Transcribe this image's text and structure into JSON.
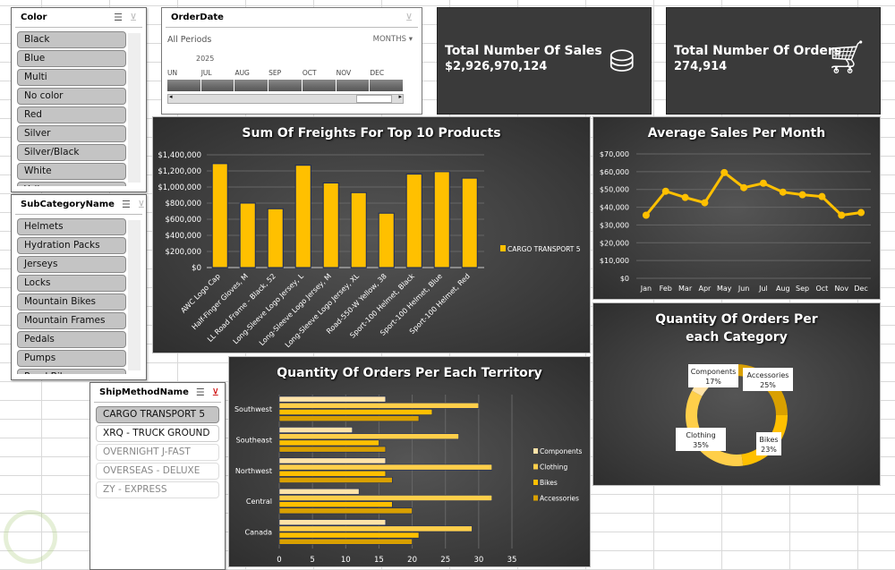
{
  "slicers": {
    "color": {
      "title": "Color",
      "items": [
        "Black",
        "Blue",
        "Multi",
        "No color",
        "Red",
        "Silver",
        "Silver/Black",
        "White",
        "Yellow"
      ]
    },
    "subcategory": {
      "title": "SubCategoryName",
      "items": [
        "Helmets",
        "Hydration Packs",
        "Jerseys",
        "Locks",
        "Mountain Bikes",
        "Mountain Frames",
        "Pedals",
        "Pumps",
        "Road Bikes"
      ]
    },
    "shipmethod": {
      "title": "ShipMethodName",
      "items": [
        {
          "label": "CARGO TRANSPORT 5",
          "state": "selected"
        },
        {
          "label": "XRQ - TRUCK GROUND",
          "state": "available"
        },
        {
          "label": "OVERNIGHT J-FAST",
          "state": "nodata"
        },
        {
          "label": "OVERSEAS - DELUXE",
          "state": "nodata"
        },
        {
          "label": "ZY - EXPRESS",
          "state": "nodata"
        }
      ]
    }
  },
  "timeline": {
    "title": "OrderDate",
    "period": "All Periods",
    "level": "MONTHS",
    "year": "2025",
    "months": [
      "UN",
      "JUL",
      "AUG",
      "SEP",
      "OCT",
      "NOV",
      "DEC"
    ]
  },
  "kpis": [
    {
      "title": "Total Number Of Sales",
      "value": "$2,926,970,124",
      "icon": "coins-icon"
    },
    {
      "title": "Total Number Of Orders",
      "value": "274,914",
      "icon": "shopping-cart-icon"
    }
  ],
  "colors": {
    "accent": "#ffc000",
    "components": "#ffe3a8",
    "clothing": "#ffcf4a",
    "bikes": "#ffc000",
    "accessories": "#d9a000"
  },
  "chart_data": [
    {
      "type": "bar",
      "title": "Sum Of Freights For Top 10 Products",
      "categories": [
        "AWC Logo Cap",
        "Half-Finger Gloves, M",
        "LL Road Frame - Black, 52",
        "Long-Sleeve Logo Jersey, L",
        "Long-Sleeve Logo Jersey, M",
        "Long-Sleeve Logo Jersey, XL",
        "Road-550-W Yellow, 38",
        "Sport-100 Helmet, Black",
        "Sport-100 Helmet, Blue",
        "Sport-100 Helmet, Red"
      ],
      "series": [
        {
          "name": "CARGO TRANSPORT 5",
          "values": [
            1290000,
            800000,
            730000,
            1270000,
            1050000,
            930000,
            675000,
            1160000,
            1190000,
            1110000
          ]
        }
      ],
      "ylim": [
        0,
        1400000
      ],
      "yticks": [
        "$0",
        "$200,000",
        "$400,000",
        "$600,000",
        "$800,000",
        "$1,000,000",
        "$1,200,000",
        "$1,400,000"
      ],
      "grid": true,
      "legend": "right"
    },
    {
      "type": "line",
      "title": "Average Sales Per Month",
      "categories": [
        "Jan",
        "Feb",
        "Mar",
        "Apr",
        "May",
        "Jun",
        "Jul",
        "Aug",
        "Sep",
        "Oct",
        "Nov",
        "Dec"
      ],
      "values": [
        35500,
        49000,
        45500,
        42500,
        59500,
        51000,
        53500,
        48500,
        47000,
        46000,
        35500,
        37000
      ],
      "ylim": [
        0,
        70000
      ],
      "yticks": [
        "$0",
        "$10,000",
        "$20,000",
        "$30,000",
        "$40,000",
        "$50,000",
        "$60,000",
        "$70,000"
      ],
      "grid": true
    },
    {
      "type": "pie",
      "title": "Quantity Of Orders Per each Category",
      "donut": true,
      "slices": [
        {
          "label": "Accessories",
          "value": 25,
          "text": "25%"
        },
        {
          "label": "Bikes",
          "value": 23,
          "text": "23%"
        },
        {
          "label": "Clothing",
          "value": 35,
          "text": "35%"
        },
        {
          "label": "Components",
          "value": 17,
          "text": "17%"
        }
      ]
    },
    {
      "type": "bar",
      "orientation": "horizontal",
      "title": "Quantity Of Orders Per Each Territory",
      "categories": [
        "Southwest",
        "Southeast",
        "Northwest",
        "Central",
        "Canada"
      ],
      "series": [
        {
          "name": "Components",
          "values": [
            16,
            11,
            16,
            12,
            16
          ]
        },
        {
          "name": "Clothing",
          "values": [
            30,
            27,
            32,
            32,
            29
          ]
        },
        {
          "name": "Bikes",
          "values": [
            23,
            15,
            16,
            17,
            21
          ]
        },
        {
          "name": "Accessories",
          "values": [
            21,
            16,
            17,
            20,
            20
          ]
        }
      ],
      "xlim": [
        0,
        35
      ],
      "xticks": [
        "0",
        "5",
        "10",
        "15",
        "20",
        "25",
        "30",
        "35"
      ],
      "grid": true,
      "legend": "right"
    }
  ]
}
